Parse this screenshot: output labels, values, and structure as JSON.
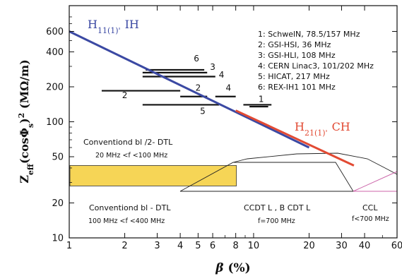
{
  "chart_data": {
    "type": "line",
    "x_scale": "log",
    "y_scale": "log",
    "xlim": [
      1,
      60
    ],
    "ylim": [
      10,
      1000
    ],
    "xlabel": "β (%)",
    "ylabel": "Zeff(cosΦs)² (MΩ/m)",
    "x_ticks": [
      1,
      2,
      3,
      4,
      5,
      6,
      8,
      10,
      20,
      30,
      40,
      60
    ],
    "x_tick_labels": [
      "1",
      "2",
      "3",
      "4",
      "5",
      "6",
      "8",
      "10",
      "20",
      "30",
      "40",
      "60"
    ],
    "y_ticks": [
      10,
      20,
      50,
      100,
      200,
      400,
      600
    ],
    "y_tick_labels": [
      "10",
      "20",
      "50",
      "100",
      "200",
      "400",
      "600"
    ],
    "series": [
      {
        "name": "H11(1)' IH",
        "color": "#3b49a3",
        "x": [
          1,
          20
        ],
        "y": [
          600,
          60
        ]
      },
      {
        "name": "H21(1)' CH",
        "color": "#e24a33",
        "x": [
          8,
          35
        ],
        "y": [
          125,
          42
        ]
      }
    ],
    "curve_labels": [
      {
        "name": "H",
        "subscript": "11(1)'",
        "suffix": "IH",
        "color": "#3b49a3"
      },
      {
        "name": "H",
        "subscript": "21(1)'",
        "suffix": "CH",
        "color": "#e24a33"
      }
    ],
    "structures": [
      {
        "id": "1",
        "label": "Schwel N, 78.5/157 MHz",
        "y": 140,
        "x": [
          8.8,
          12.5
        ],
        "labeled": true
      },
      {
        "id": "1b",
        "label": "",
        "y": 135,
        "x": [
          9.5,
          12
        ],
        "labeled": false
      },
      {
        "id": "2",
        "label": "GSI-HSI, 36 MHz",
        "y": 185,
        "x": [
          1.5,
          4.0
        ],
        "labeled": true
      },
      {
        "id": "2b",
        "label": "",
        "y": 165,
        "x": [
          4.0,
          5.6
        ],
        "labeled": false
      },
      {
        "id": "3",
        "label": "GSI-HLI, 108 MHz",
        "y": 265,
        "x": [
          2.5,
          5.6
        ],
        "labeled": true
      },
      {
        "id": "4",
        "label": "CERN Linac3, 101/202 MHz",
        "y": 245,
        "x": [
          2.5,
          6.2
        ],
        "labeled": true
      },
      {
        "id": "4b",
        "label": "",
        "y": 165,
        "x": [
          6.2,
          8.0
        ],
        "labeled": false
      },
      {
        "id": "5",
        "label": "HICAT, 217 MHz",
        "y": 140,
        "x": [
          2.5,
          6.5
        ],
        "labeled": true
      },
      {
        "id": "6",
        "label": "REX-IH1 101 MHz",
        "y": 280,
        "x": [
          2.6,
          5.4
        ],
        "labeled": true
      }
    ],
    "legend": [
      "1: SchwelN, 78.5/157 MHz",
      "2: GSI-HSI, 36 MHz",
      "3: GSI-HLI, 108 MHz",
      "4: CERN Linac3, 101/202 MHz",
      "5: HICAT, 217 MHz",
      "6: REX-IH1 101 MHz"
    ],
    "legend_position": "top-right",
    "bar_numbers": [
      {
        "text": "6",
        "x": 4.9,
        "y": 330
      },
      {
        "text": "3",
        "x": 6.0,
        "y": 280
      },
      {
        "text": "4",
        "x": 6.7,
        "y": 240
      },
      {
        "text": "2",
        "x": 5.0,
        "y": 185
      },
      {
        "text": "4",
        "x": 7.3,
        "y": 185
      },
      {
        "text": "1",
        "x": 11.0,
        "y": 148
      },
      {
        "text": "2",
        "x": 2.0,
        "y": 160
      },
      {
        "text": "5",
        "x": 5.3,
        "y": 117
      }
    ],
    "regions": [
      {
        "name": "Conventional /2-DTL",
        "title": "Conventiond bl /2- DTL",
        "subtitle": "20 MHz <f <100 MHz",
        "fill": "#f6d556",
        "x": [
          1,
          8
        ],
        "y": [
          28,
          42
        ]
      },
      {
        "name": "Conventional -DTL",
        "title": "Conventiond bl - DTL",
        "subtitle": "100 MHz <f <400 MHz"
      },
      {
        "name": "CCDTL, BCDTL",
        "title": "CCDT L , B CDT L",
        "subtitle": "f=700 MHz"
      },
      {
        "name": "CCL",
        "title": "CCL",
        "subtitle": "f<700 MHz",
        "color": "#cc66aa"
      }
    ],
    "grid": false
  }
}
